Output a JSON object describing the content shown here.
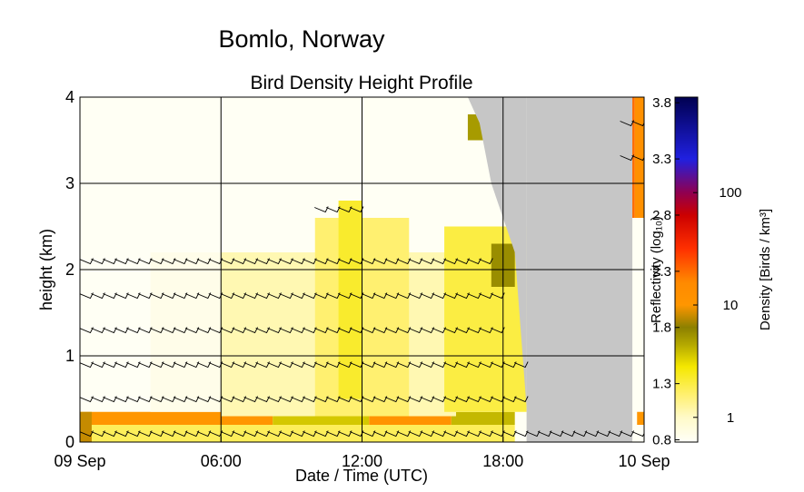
{
  "chart_data": {
    "type": "heatmap",
    "suptitle": "Bomlo, Norway",
    "title": "Bird Density Height Profile",
    "xlabel": "Date / Time (UTC)",
    "ylabel": "height (km)",
    "x_unit": "hours after 09 Sep 00:00 UTC",
    "xlim": [
      0,
      24
    ],
    "ylim": [
      0,
      4
    ],
    "x_ticks": [
      {
        "value": 0,
        "label": "09 Sep"
      },
      {
        "value": 6,
        "label": "06:00"
      },
      {
        "value": 12,
        "label": "12:00"
      },
      {
        "value": 18,
        "label": "18:00"
      },
      {
        "value": 24,
        "label": "10 Sep"
      }
    ],
    "y_ticks": [
      {
        "value": 0,
        "label": "0"
      },
      {
        "value": 1,
        "label": "1"
      },
      {
        "value": 2,
        "label": "2"
      },
      {
        "value": 3,
        "label": "3"
      },
      {
        "value": 4,
        "label": "4"
      }
    ],
    "grid": true,
    "nodata_color": "#c6c6c6",
    "colorbar": {
      "reflectivity_label": "Reflectivity (log₁₀)",
      "density_label": "Density [Birds / km³]",
      "range": [
        0.78,
        3.85
      ],
      "reflectivity_ticks": [
        {
          "value": 0.8,
          "label": "0.8"
        },
        {
          "value": 1.3,
          "label": "1.3"
        },
        {
          "value": 1.8,
          "label": "1.8"
        },
        {
          "value": 2.3,
          "label": "2.3"
        },
        {
          "value": 2.8,
          "label": "2.8"
        },
        {
          "value": 3.3,
          "label": "3.3"
        },
        {
          "value": 3.8,
          "label": "3.8"
        }
      ],
      "density_ticks": [
        {
          "value": 1,
          "label": "1"
        },
        {
          "value": 10,
          "label": "10"
        },
        {
          "value": 100,
          "label": "100"
        }
      ],
      "stops": [
        {
          "value": 0.78,
          "color": "#fffff8"
        },
        {
          "value": 1.0,
          "color": "#fffac8"
        },
        {
          "value": 1.2,
          "color": "#fff070"
        },
        {
          "value": 1.45,
          "color": "#f5e800"
        },
        {
          "value": 1.65,
          "color": "#b4a800"
        },
        {
          "value": 1.8,
          "color": "#8c8000"
        },
        {
          "value": 2.0,
          "color": "#ff9600"
        },
        {
          "value": 2.2,
          "color": "#ff8a00"
        },
        {
          "value": 2.5,
          "color": "#ff3000"
        },
        {
          "value": 2.8,
          "color": "#cc0000"
        },
        {
          "value": 3.0,
          "color": "#900050"
        },
        {
          "value": 3.3,
          "color": "#2020e0"
        },
        {
          "value": 3.85,
          "color": "#000050"
        }
      ]
    },
    "density_layers": [
      {
        "t0": 0,
        "t1": 8.2,
        "h0": 0.2,
        "h1": 0.35,
        "value": 2.0
      },
      {
        "t0": 8.2,
        "t1": 12.3,
        "h0": 0.2,
        "h1": 0.35,
        "value": 1.55
      },
      {
        "t0": 12.3,
        "t1": 15.8,
        "h0": 0.2,
        "h1": 0.35,
        "value": 2.05
      },
      {
        "t0": 15.8,
        "t1": 18.5,
        "h0": 0.2,
        "h1": 0.35,
        "value": 1.6
      },
      {
        "t0": 0,
        "t1": 18.5,
        "h0": 0.0,
        "h1": 0.2,
        "value": 1.25
      },
      {
        "t0": 0,
        "t1": 0.5,
        "h0": 0.0,
        "h1": 0.35,
        "value": 1.9
      },
      {
        "t0": 3,
        "t1": 18,
        "h0": 0.35,
        "h1": 2.2,
        "value": 0.85
      },
      {
        "t0": 6,
        "t1": 16,
        "h0": 0.3,
        "h1": 2.2,
        "value": 1.05
      },
      {
        "t0": 10,
        "t1": 14,
        "h0": 0.3,
        "h1": 2.6,
        "value": 1.2
      },
      {
        "t0": 11,
        "t1": 12,
        "h0": 0.5,
        "h1": 2.8,
        "value": 1.35
      },
      {
        "t0": 15.5,
        "t1": 19,
        "h0": 0.35,
        "h1": 2.5,
        "value": 1.3
      },
      {
        "t0": 17.5,
        "t1": 18.5,
        "h0": 1.8,
        "h1": 2.3,
        "value": 1.75
      },
      {
        "t0": 16.5,
        "t1": 17.2,
        "h0": 3.5,
        "h1": 3.8,
        "value": 1.7
      },
      {
        "t0": 23.0,
        "t1": 23.2,
        "h0": 2.8,
        "h1": 3.4,
        "value": 2.4
      },
      {
        "t0": 23.4,
        "t1": 23.6,
        "h0": 2.6,
        "h1": 4.0,
        "value": 2.3
      },
      {
        "t0": 23.6,
        "t1": 24.0,
        "h0": 2.6,
        "h1": 4.0,
        "value": 2.1
      },
      {
        "t0": 23.7,
        "t1": 24.0,
        "h0": 0.2,
        "h1": 0.35,
        "value": 2.0
      }
    ],
    "nodata_regions": [
      {
        "t": [
          16.5,
          17.0,
          17.5,
          18.0,
          18.5,
          19.0
        ],
        "h_from": [
          4.0,
          3.7,
          3.0,
          2.6,
          2.2,
          0.4
        ]
      },
      {
        "t0": 19.0,
        "t1": 23.5,
        "h0": 0.0,
        "h1": 4.0
      }
    ],
    "wind_barb_heights": [
      0.1,
      0.5,
      0.9,
      1.3,
      1.7,
      2.1,
      2.7,
      3.3,
      3.7
    ],
    "wind_barbs": [
      {
        "h": 0.1,
        "t": [
          0,
          24
        ]
      },
      {
        "h": 0.5,
        "t": [
          0,
          19
        ]
      },
      {
        "h": 0.9,
        "t": [
          0,
          19
        ]
      },
      {
        "h": 1.3,
        "t": [
          0,
          18
        ]
      },
      {
        "h": 1.7,
        "t": [
          0,
          18
        ]
      },
      {
        "h": 2.1,
        "t": [
          0,
          17.5
        ]
      },
      {
        "h": 2.7,
        "t": [
          10,
          12
        ]
      },
      {
        "h": 3.3,
        "t": [
          23,
          24
        ]
      },
      {
        "h": 3.7,
        "t": [
          23,
          24
        ]
      }
    ]
  }
}
